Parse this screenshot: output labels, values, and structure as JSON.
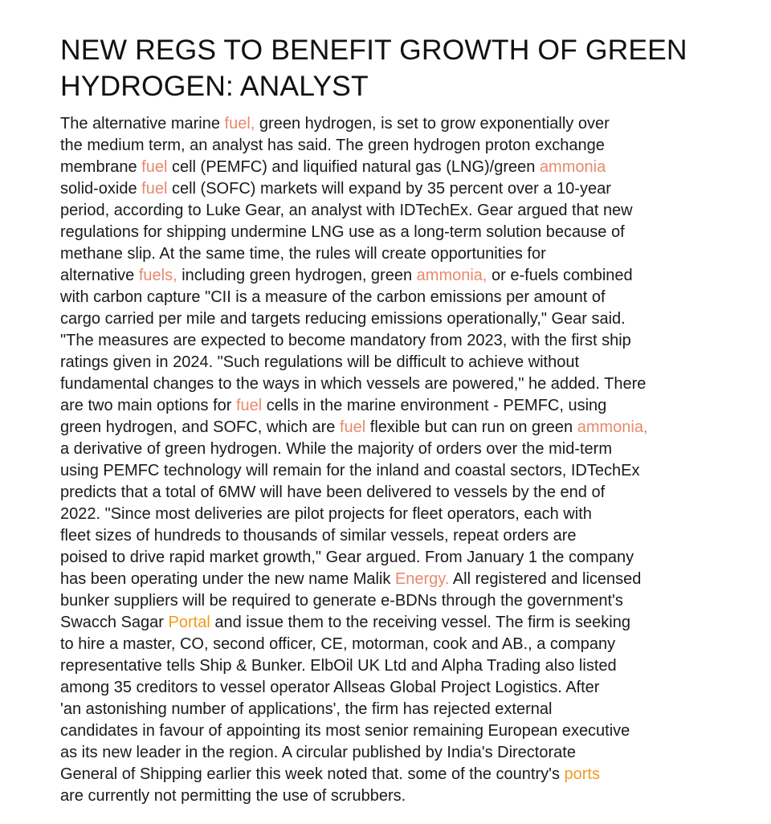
{
  "colors": {
    "keyword_salmon": "#e8896b",
    "keyword_orange": "#f39a1e",
    "text": "#1a1a1a"
  },
  "article": {
    "headline_lines": [
      "NEW REGS TO BENEFIT GROWTH OF GREEN",
      "HYDROGEN: ANALYST"
    ],
    "body_lines": [
      [
        {
          "t": "The alternative marine "
        },
        {
          "t": "fuel,",
          "k": "salmon"
        },
        {
          "t": " green hydrogen, is set to grow exponentially over"
        }
      ],
      [
        {
          "t": "the medium term, an analyst has said. The green hydrogen proton exchange"
        }
      ],
      [
        {
          "t": "membrane "
        },
        {
          "t": "fuel",
          "k": "salmon"
        },
        {
          "t": " cell (PEMFC) and liquified natural gas (LNG)/green "
        },
        {
          "t": "ammonia",
          "k": "salmon"
        }
      ],
      [
        {
          "t": "solid-oxide "
        },
        {
          "t": "fuel",
          "k": "salmon"
        },
        {
          "t": " cell (SOFC) markets will expand by 35 percent over a 10-year"
        }
      ],
      [
        {
          "t": "period, according to Luke Gear, an analyst with IDTechEx. Gear argued that new"
        }
      ],
      [
        {
          "t": "regulations for shipping undermine LNG use as a long-term solution because of"
        }
      ],
      [
        {
          "t": "methane slip. At the same time, the rules will create opportunities for"
        }
      ],
      [
        {
          "t": "alternative "
        },
        {
          "t": "fuels,",
          "k": "salmon"
        },
        {
          "t": " including green hydrogen, green "
        },
        {
          "t": "ammonia,",
          "k": "salmon"
        },
        {
          "t": " or e-fuels combined"
        }
      ],
      [
        {
          "t": "with carbon capture \"CII is a measure of the carbon emissions per amount of"
        }
      ],
      [
        {
          "t": "cargo carried per mile and targets reducing emissions operationally,\" Gear said."
        }
      ],
      [
        {
          "t": "\"The measures are expected to become mandatory from 2023, with the first ship"
        }
      ],
      [
        {
          "t": "ratings given in 2024. \"Such regulations will be difficult to achieve without"
        }
      ],
      [
        {
          "t": "fundamental changes to the ways in which vessels are powered,\" he added. There"
        }
      ],
      [
        {
          "t": "are two main options for "
        },
        {
          "t": "fuel",
          "k": "salmon"
        },
        {
          "t": " cells in the marine environment - PEMFC, using"
        }
      ],
      [
        {
          "t": "green hydrogen, and SOFC, which are "
        },
        {
          "t": "fuel",
          "k": "salmon"
        },
        {
          "t": " flexible but can run on green "
        },
        {
          "t": "ammonia,",
          "k": "salmon"
        }
      ],
      [
        {
          "t": "a derivative of green hydrogen. While the majority of orders over the mid-term"
        }
      ],
      [
        {
          "t": "using PEMFC technology will remain for the inland and coastal sectors, IDTechEx"
        }
      ],
      [
        {
          "t": "predicts that a total of 6MW will have been delivered to vessels by the end of"
        }
      ],
      [
        {
          "t": "2022. \"Since most deliveries are pilot projects for fleet operators, each with"
        }
      ],
      [
        {
          "t": "fleet sizes of hundreds to thousands of similar vessels, repeat orders are"
        }
      ],
      [
        {
          "t": "poised to drive rapid market growth,\" Gear argued. From January 1 the company"
        }
      ],
      [
        {
          "t": "has been operating under the new name Malik "
        },
        {
          "t": "Energy.",
          "k": "salmon"
        },
        {
          "t": " All registered and licensed"
        }
      ],
      [
        {
          "t": "bunker suppliers will be required to generate e-BDNs through the government's"
        }
      ],
      [
        {
          "t": "Swacch Sagar "
        },
        {
          "t": "Portal",
          "k": "orange"
        },
        {
          "t": " and issue them to the receiving vessel. The firm is seeking"
        }
      ],
      [
        {
          "t": "to hire a master, CO, second officer, CE, motorman, cook and AB., a company"
        }
      ],
      [
        {
          "t": "representative tells Ship & Bunker. ElbOil UK Ltd and Alpha Trading also listed"
        }
      ],
      [
        {
          "t": "among 35 creditors to vessel operator Allseas Global Project Logistics. After"
        }
      ],
      [
        {
          "t": "'an astonishing number of applications', the firm has rejected external"
        }
      ],
      [
        {
          "t": "candidates in favour of appointing its most senior remaining European executive"
        }
      ],
      [
        {
          "t": "as its new leader in the region. A circular published by India's Directorate"
        }
      ],
      [
        {
          "t": "General of Shipping earlier this week noted that. some of the country's "
        },
        {
          "t": "ports",
          "k": "orange"
        }
      ],
      [
        {
          "t": "are currently not permitting the use of scrubbers."
        }
      ]
    ]
  }
}
